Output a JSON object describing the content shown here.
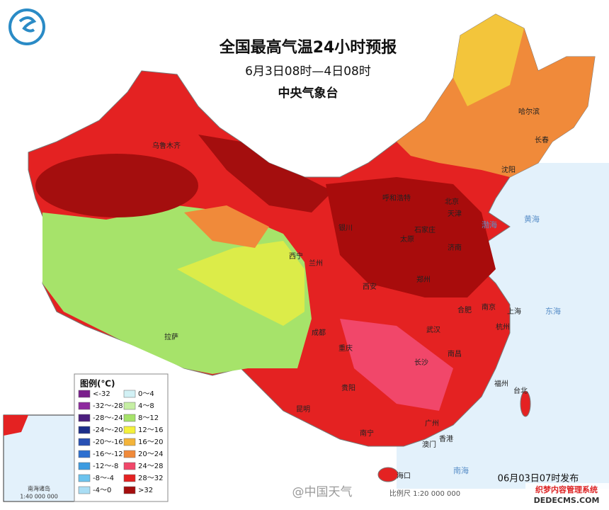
{
  "header": {
    "title": "全国最高气温24小时预报",
    "subtitle": "6月3日08时—4日08时",
    "agency": "中央气象台"
  },
  "legend": {
    "title": "图例(℃)",
    "items": [
      {
        "label": "<-32",
        "color": "#7a1f8c"
      },
      {
        "label": "-32～-28",
        "color": "#8e2a9e"
      },
      {
        "label": "-28～-24",
        "color": "#4b1f7e"
      },
      {
        "label": "-24～-20",
        "color": "#1c2e8a"
      },
      {
        "label": "-20～-16",
        "color": "#2850b4"
      },
      {
        "label": "-16～-12",
        "color": "#2d6fd0"
      },
      {
        "label": "-12～-8",
        "color": "#3c9be0"
      },
      {
        "label": "-8～-4",
        "color": "#6cc3ee"
      },
      {
        "label": "-4～0",
        "color": "#a9ddf4"
      },
      {
        "label": "0～4",
        "color": "#d2f1f5"
      },
      {
        "label": "4～8",
        "color": "#c6efa4"
      },
      {
        "label": "8～12",
        "color": "#a6e36a"
      },
      {
        "label": "12～16",
        "color": "#f4f03c"
      },
      {
        "label": "16～20",
        "color": "#f3b43a"
      },
      {
        "label": "20～24",
        "color": "#f08a3a"
      },
      {
        "label": "24～28",
        "color": "#f1476a"
      },
      {
        "label": "28～32",
        "color": "#e42222"
      },
      {
        "label": ">32",
        "color": "#a40e0e"
      }
    ]
  },
  "cities": [
    "乌鲁木齐",
    "哈尔滨",
    "长春",
    "沈阳",
    "呼和浩特",
    "北京",
    "天津",
    "石家庄",
    "太原",
    "济南",
    "银川",
    "西宁",
    "兰州",
    "西安",
    "郑州",
    "合肥",
    "南京",
    "上海",
    "杭州",
    "武汉",
    "成都",
    "重庆",
    "长沙",
    "南昌",
    "福州",
    "台北",
    "贵阳",
    "昆明",
    "南宁",
    "广州",
    "澳门",
    "香港",
    "海口",
    "拉萨"
  ],
  "seas": [
    "渤海",
    "黄海",
    "东海",
    "南海"
  ],
  "inset": {
    "label": "南海诸岛",
    "scale": "1:40 000 000"
  },
  "footer": {
    "issued": "06月03日07时发布",
    "scale": "比例尺 1:20 000 000",
    "watermark": "@中国天气",
    "site": "织梦内容管理系统",
    "site_url": "DEDECMS.COM"
  }
}
